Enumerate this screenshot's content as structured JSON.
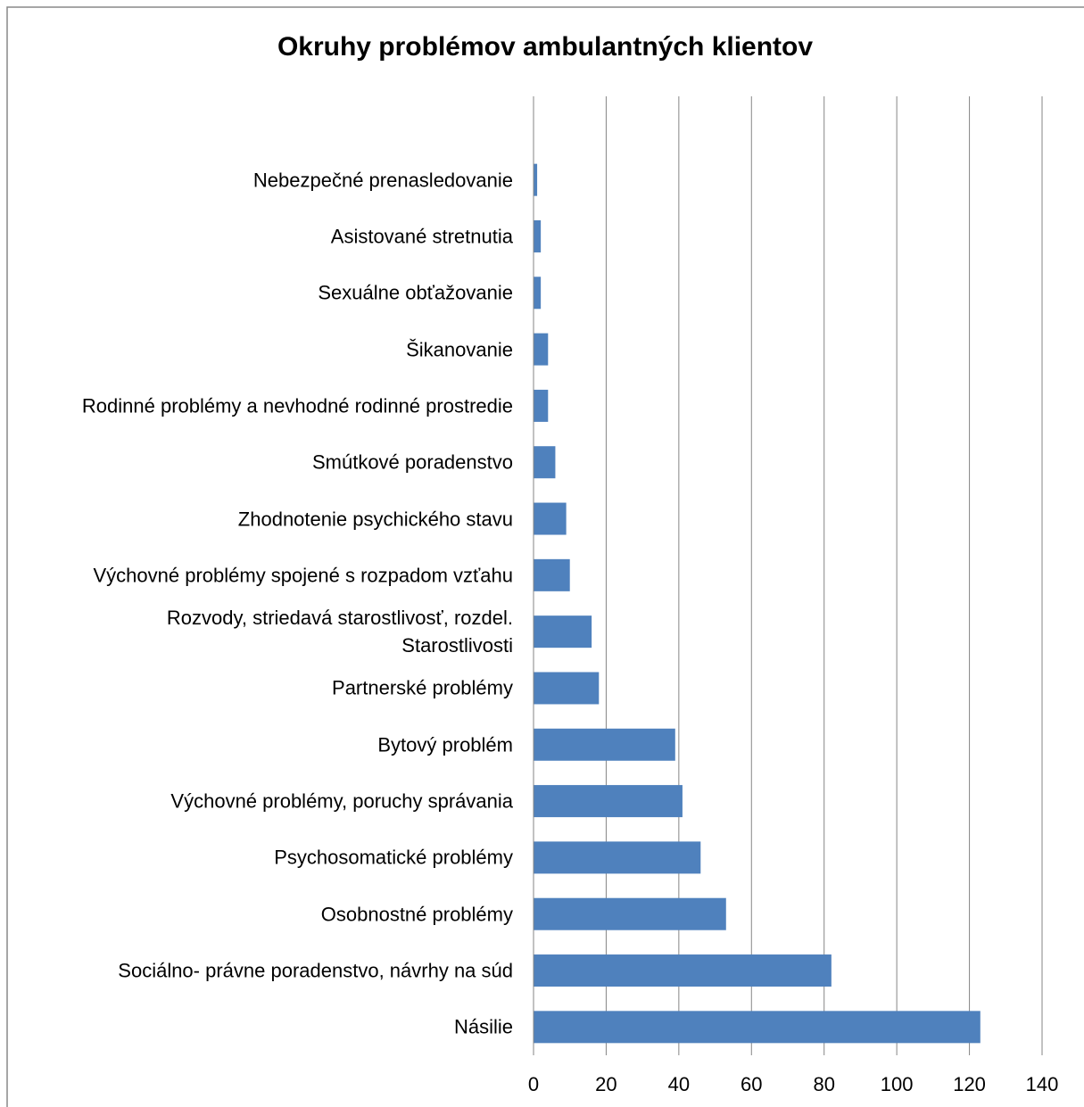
{
  "chart_data": {
    "type": "bar",
    "orientation": "horizontal",
    "title": "Okruhy problémov ambulantných klientov",
    "categories": [
      "Nebezpečné prenasledovanie",
      "Asistované stretnutia",
      "Sexuálne obťažovanie",
      "Šikanovanie",
      "Rodinné problémy  a nevhodné rodinné prostredie",
      "Smútkové poradenstvo",
      "Zhodnotenie psychického stavu",
      "Výchovné problémy spojené s rozpadom vzťahu",
      "Rozvody, striedavá starostlivosť, rozdel.\nStarostlivosti",
      "Partnerské problémy",
      "Bytový problém",
      "Výchovné problémy, poruchy správania",
      "Psychosomatické problémy",
      "Osobnostné problémy",
      "Sociálno- právne poradenstvo, návrhy na súd",
      "Násilie"
    ],
    "values": [
      1,
      2,
      2,
      4,
      4,
      6,
      9,
      10,
      16,
      18,
      39,
      41,
      46,
      53,
      82,
      123
    ],
    "color": "#4f81bd",
    "xlim": [
      0,
      140
    ],
    "xticks": [
      0,
      20,
      40,
      60,
      80,
      100,
      120,
      140
    ],
    "grid": true
  }
}
